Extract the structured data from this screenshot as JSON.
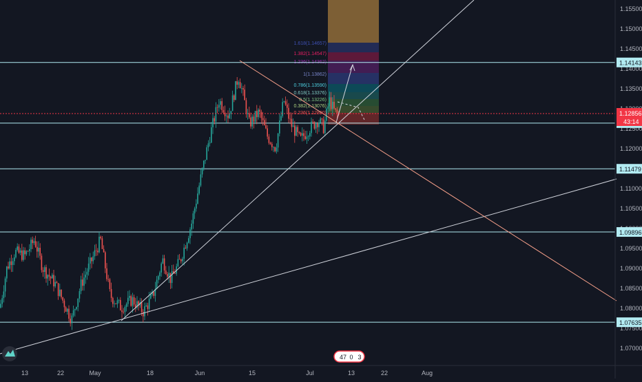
{
  "colors": {
    "background": "#131722",
    "horizontal_level": "#b2ebf2",
    "trendline_white": "#d1d4dc",
    "trendline_salmon": "#f7a08a",
    "price_line": "#f23645",
    "candle_up": "#26a69a",
    "candle_down": "#ef5350",
    "axis_text": "#b2b5be",
    "fib_1618": "#3f51b5",
    "fib_1382": "#e91e63",
    "fib_1236": "#9c27b0",
    "fib_1": "#3f51b5",
    "fib_0786": "#00bcd4",
    "fib_0618": "#26a69a",
    "fib_05": "#4caf50",
    "fib_0382": "#8bc34a",
    "fib_0236": "#f44336",
    "fib_top": "#ffb74d"
  },
  "price_axis": {
    "ticks": [
      "1.15500",
      "1.15000",
      "1.14500",
      "1.14000",
      "1.13500",
      "1.13000",
      "1.12500",
      "1.12000",
      "1.11500",
      "1.11000",
      "1.10500",
      "1.10000",
      "1.09500",
      "1.09000",
      "1.08500",
      "1.08000",
      "1.07500",
      "1.07000"
    ],
    "levels": [
      "1.14143",
      "1.12623",
      "1.11479",
      "1.09896",
      "1.07635"
    ],
    "current_price": "1.12856",
    "countdown": "43:14"
  },
  "time_axis": {
    "labels": [
      "13",
      "22",
      "May",
      "18",
      "Jun",
      "15",
      "Jul",
      "13",
      "22",
      "Aug"
    ]
  },
  "fib_labels": [
    "1.618(1.14657)",
    "1.382(1.14547)",
    "1.236(1.14362)",
    "1(1.13862)",
    "0.786(1.13590)",
    "0.618(1.13376)",
    "0.5(1.13226)",
    "0.382(1.13076)",
    "0.236(1.12890)"
  ],
  "badge": {
    "left": "47",
    "middle": "0",
    "right": "3"
  },
  "logo": {
    "icon": "tradingview-logo-icon"
  }
}
